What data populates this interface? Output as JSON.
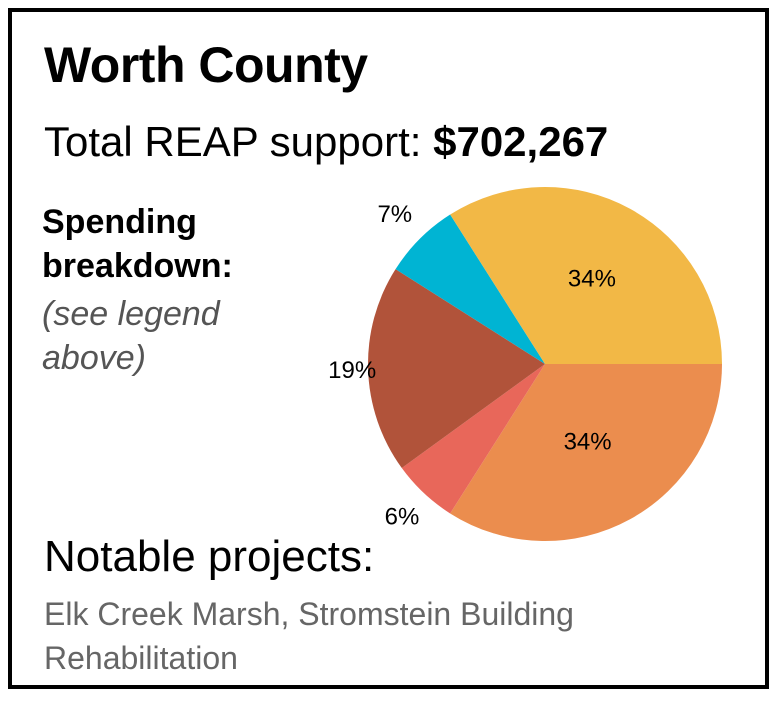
{
  "title": "Worth County",
  "subtitle": {
    "label": "Total REAP support: ",
    "amount": "$702,267"
  },
  "breakdown": {
    "heading_line1": "Spending",
    "heading_line2": "breakdown:",
    "note_line1": "(see legend",
    "note_line2": "above)"
  },
  "chart_data": {
    "type": "pie",
    "title": "",
    "start_angle_deg": 0,
    "direction": "clockwise",
    "slices": [
      {
        "label": "34%",
        "value": 34,
        "color": "#eb8d4e"
      },
      {
        "label": "6%",
        "value": 6,
        "color": "#e8675a"
      },
      {
        "label": "19%",
        "value": 19,
        "color": "#b1533a"
      },
      {
        "label": "7%",
        "value": 7,
        "color": "#00b4d3"
      },
      {
        "label": "34%",
        "value": 34,
        "color": "#f2b846"
      }
    ]
  },
  "projects": {
    "heading": "Notable projects:",
    "text": "Elk Creek Marsh, Stromstein Building Rehabilitation"
  }
}
